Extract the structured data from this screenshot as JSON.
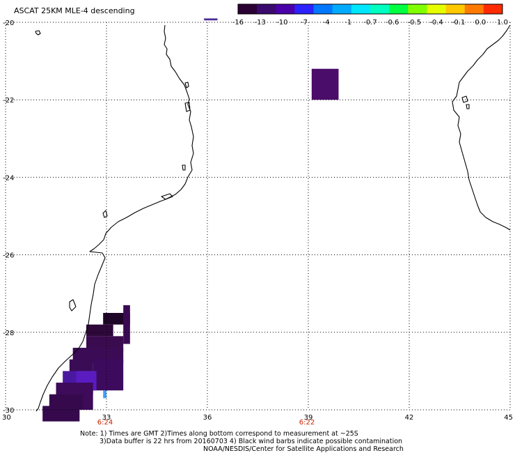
{
  "title": "ASCAT 25KM MLE-4 descending",
  "colorbar": {
    "colors": [
      "#2b0033",
      "#3a0a6e",
      "#4a00a8",
      "#2b22ff",
      "#0077ff",
      "#00aaff",
      "#00e6ff",
      "#00ffc0",
      "#00ff40",
      "#80ff00",
      "#e6ff00",
      "#ffc800",
      "#ff7a00",
      "#ff2a00"
    ],
    "labels": [
      "-16",
      "-13",
      "-10",
      "-7",
      "-4",
      "-1",
      "-0.7",
      "-0.6",
      "-0.5",
      "-0.4",
      "-0.1",
      "0.0",
      "1.0"
    ]
  },
  "axes": {
    "lon_range": [
      30,
      45
    ],
    "lat_range": [
      -30,
      -20
    ],
    "lon_ticks": [
      "30",
      "33",
      "36",
      "39",
      "42",
      "45"
    ],
    "lat_ticks": [
      "-20",
      "-22",
      "-24",
      "-26",
      "-28",
      "-30"
    ],
    "grid": "dotted"
  },
  "pass_times": [
    {
      "lon": 33,
      "label": "6:24"
    },
    {
      "lon": 39,
      "label": "6:22"
    }
  ],
  "data_cells": [
    {
      "lon": 39.1,
      "lat": -21.2,
      "w": 0.8,
      "h": 0.8,
      "color": "#4a0d6a"
    },
    {
      "lon": 32.9,
      "lat": -27.5,
      "w": 0.8,
      "h": 0.3,
      "color": "#1e0628"
    },
    {
      "lon": 33.5,
      "lat": -27.3,
      "w": 0.2,
      "h": 1.0,
      "color": "#3a0b52"
    },
    {
      "lon": 32.4,
      "lat": -27.8,
      "w": 0.8,
      "h": 0.3,
      "color": "#2e0838"
    },
    {
      "lon": 32.4,
      "lat": -28.1,
      "w": 1.1,
      "h": 0.4,
      "color": "#3a0b4e"
    },
    {
      "lon": 32.0,
      "lat": -28.4,
      "w": 1.5,
      "h": 0.4,
      "color": "#3c0b55"
    },
    {
      "lon": 32.6,
      "lat": -28.7,
      "w": 0.9,
      "h": 0.8,
      "color": "#3d0b5e"
    },
    {
      "lon": 31.9,
      "lat": -28.7,
      "w": 0.7,
      "h": 0.5,
      "color": "#3a0c55"
    },
    {
      "lon": 31.7,
      "lat": -29.0,
      "w": 0.9,
      "h": 0.6,
      "color": "#4a18a0"
    },
    {
      "lon": 32.1,
      "lat": -29.0,
      "w": 0.6,
      "h": 0.5,
      "color": "#5a1cc0"
    },
    {
      "lon": 31.5,
      "lat": -29.3,
      "w": 1.1,
      "h": 0.7,
      "color": "#3e0a5a"
    },
    {
      "lon": 32.9,
      "lat": -29.5,
      "w": 0.1,
      "h": 0.2,
      "color": "#3da0ff"
    },
    {
      "lon": 31.3,
      "lat": -29.6,
      "w": 1.0,
      "h": 0.4,
      "color": "#36094d"
    },
    {
      "lon": 31.1,
      "lat": -29.9,
      "w": 1.1,
      "h": 0.4,
      "color": "#36094d"
    },
    {
      "lon": 35.9,
      "lat": -19.9,
      "w": 0.4,
      "h": 0.05,
      "color": "#4a2a9a"
    }
  ],
  "footer": {
    "line1": "Note: 1) Times are GMT 2)Times along bottom correspond to measurement at ~25S",
    "line2": "3)Data buffer is 22 hrs from 20160703 4) Black wind barbs indicate possible contamination",
    "line3": "NOAA/NESDIS/Center for Satellite Applications and Research"
  }
}
